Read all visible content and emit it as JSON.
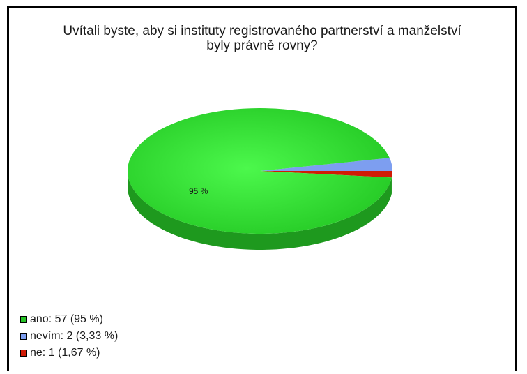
{
  "chart_data": {
    "type": "pie",
    "title_lines": [
      "Uvítali byste, aby si instituty registrovaného partnerství a manželství",
      "byly právně rovny?"
    ],
    "slices": [
      {
        "label": "ano",
        "value": 57,
        "percent_text": "95 %",
        "color": "#27c427",
        "legend": "ano: 57 (95 %)"
      },
      {
        "label": "nevím",
        "value": 2,
        "percent_text": "3,33 %",
        "color": "#7d9ef0",
        "legend": "nevím: 2 (3,33 %)"
      },
      {
        "label": "ne",
        "value": 1,
        "percent_text": "1,67 %",
        "color": "#d01b06",
        "legend": "ne: 1 (1,67 %)"
      }
    ],
    "data_labels": [
      "95 %"
    ],
    "legend_position": "bottom-left"
  }
}
